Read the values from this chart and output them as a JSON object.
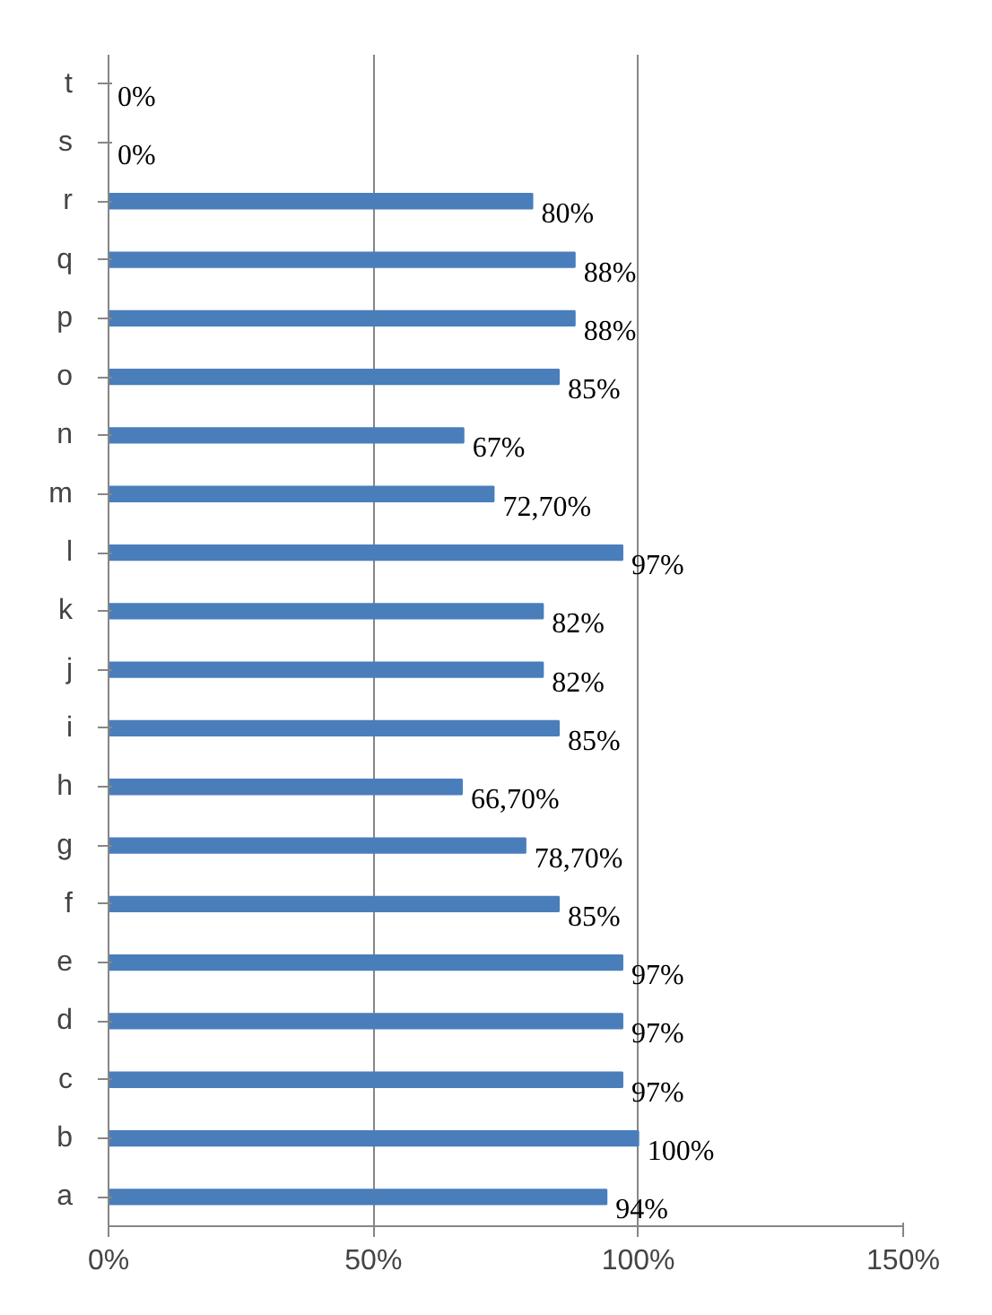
{
  "chart_data": {
    "type": "bar",
    "orientation": "horizontal",
    "categories": [
      "t",
      "s",
      "r",
      "q",
      "p",
      "o",
      "n",
      "m",
      "l",
      "k",
      "j",
      "i",
      "h",
      "g",
      "f",
      "e",
      "d",
      "c",
      "b",
      "a"
    ],
    "values": [
      0,
      0,
      80,
      88,
      88,
      85,
      67,
      72.7,
      97,
      82,
      82,
      85,
      66.7,
      78.7,
      85,
      97,
      97,
      97,
      100,
      94
    ],
    "value_labels": [
      "0%",
      "0%",
      "80%",
      "88%",
      "88%",
      "85%",
      "67%",
      "72,70%",
      "97%",
      "82%",
      "82%",
      "85%",
      "66,70%",
      "78,70%",
      "85%",
      "97%",
      "97%",
      "97%",
      "100%",
      "94%"
    ],
    "color": "#4a7ebb",
    "xlim": [
      0,
      150
    ],
    "xticks": [
      {
        "value": 0,
        "label": "0%"
      },
      {
        "value": 50,
        "label": "50%"
      },
      {
        "value": 100,
        "label": "100%"
      },
      {
        "value": 150,
        "label": "150%"
      }
    ],
    "grid": "x"
  }
}
